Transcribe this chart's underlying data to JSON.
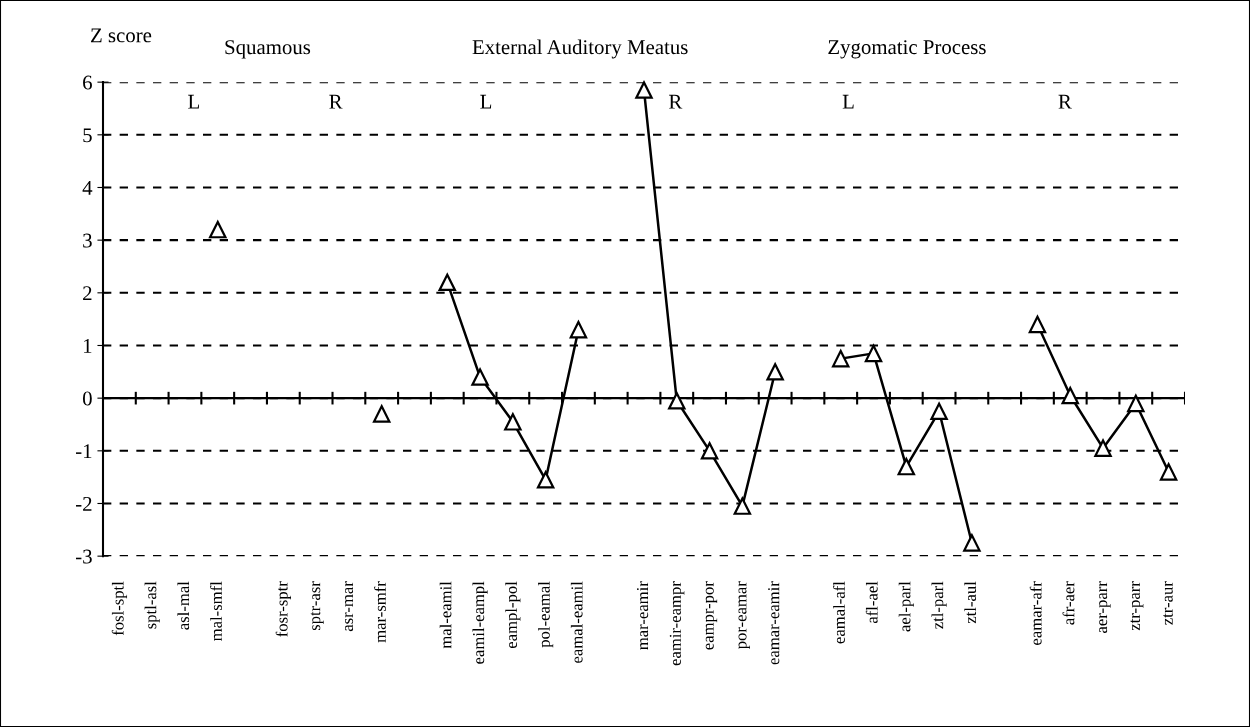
{
  "chart_data": {
    "type": "line",
    "ylabel": "Z score",
    "categories": [
      "fosl-sptl",
      "sptl-asl",
      "asl-mal",
      "mal-smfl",
      null,
      "fosr-sptr",
      "sptr-asr",
      "asr-mar",
      "mar-smfr",
      null,
      "mal-eamil",
      "eamil-eampl",
      "eampl-pol",
      "pol-eamal",
      "eamal-eamil",
      null,
      "mar-eamir",
      "eamir-eampr",
      "eampr-por",
      "por-eamar",
      "eamar-eamir",
      null,
      "eamal-afl",
      "afl-ael",
      "ael-parl",
      "ztl-parl",
      "ztl-aul",
      null,
      "eamar-afr",
      "afr-aer",
      "aer-parr",
      "ztr-parr",
      "ztr-aur"
    ],
    "series": [
      {
        "color": "#000000",
        "values": [
          null,
          null,
          null,
          3.2,
          null,
          null,
          null,
          null,
          -0.3,
          null,
          2.2,
          0.4,
          -0.45,
          -1.55,
          1.3,
          null,
          5.85,
          -0.05,
          -1.0,
          -2.05,
          0.5,
          null,
          0.75,
          0.85,
          -1.3,
          -0.25,
          -2.75,
          null,
          1.4,
          0.05,
          -0.95,
          -0.1,
          -1.4
        ]
      }
    ],
    "ylim": [
      -3,
      6
    ],
    "yticks": [
      -3,
      -2,
      -1,
      0,
      1,
      2,
      3,
      4,
      5,
      6
    ],
    "grid": "y",
    "marker": "triangle",
    "line_style": "solid",
    "legend": false,
    "annotations": [
      "Squamous",
      "External Auditory Meatus",
      "Zygomatic Process",
      "L",
      "R",
      "L",
      "R",
      "L",
      "R"
    ]
  }
}
